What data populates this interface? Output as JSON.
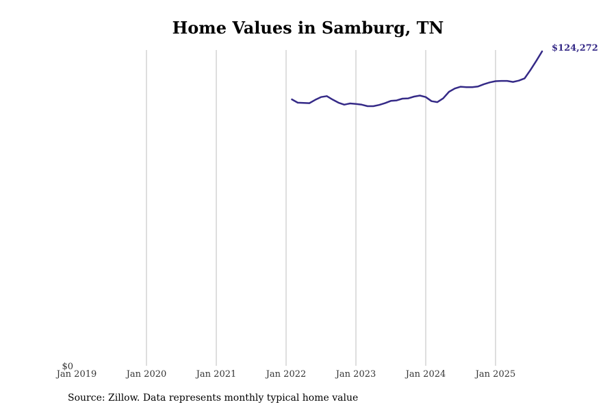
{
  "chart_data": {
    "type": "line",
    "title": "Home Values in Samburg, TN",
    "source": "Source: Zillow. Data represents monthly typical home value",
    "xlabel": "",
    "ylabel": "",
    "x_ticks": [
      {
        "date": "2019-01",
        "label": "Jan 2019"
      },
      {
        "date": "2020-01",
        "label": "Jan 2020"
      },
      {
        "date": "2021-01",
        "label": "Jan 2021"
      },
      {
        "date": "2022-01",
        "label": "Jan 2022"
      },
      {
        "date": "2023-01",
        "label": "Jan 2023"
      },
      {
        "date": "2024-01",
        "label": "Jan 2024"
      },
      {
        "date": "2025-01",
        "label": "Jan 2025"
      }
    ],
    "y_ticks": [
      {
        "value": 0,
        "label": "$0"
      }
    ],
    "xlim": [
      "2019-01",
      "2025-09"
    ],
    "ylim": [
      0,
      124272
    ],
    "grid": "vertical",
    "line_color": "#352a87",
    "end_label": "$124,272",
    "series": [
      {
        "x": [
          "2022-02",
          "2022-03",
          "2022-04",
          "2022-05",
          "2022-06",
          "2022-07",
          "2022-08",
          "2022-09",
          "2022-10",
          "2022-11",
          "2022-12",
          "2023-01",
          "2023-02",
          "2023-03",
          "2023-04",
          "2023-05",
          "2023-06",
          "2023-07",
          "2023-08",
          "2023-09",
          "2023-10",
          "2023-11",
          "2023-12",
          "2024-01",
          "2024-02",
          "2024-03",
          "2024-04",
          "2024-05",
          "2024-06",
          "2024-07",
          "2024-08",
          "2024-09",
          "2024-10",
          "2024-11",
          "2024-12",
          "2025-01",
          "2025-02",
          "2025-03",
          "2025-04",
          "2025-05",
          "2025-06",
          "2025-07",
          "2025-08",
          "2025-09"
        ],
        "y": [
          105300,
          104000,
          103900,
          103800,
          105100,
          106200,
          106600,
          105200,
          104000,
          103200,
          103700,
          103500,
          103200,
          102600,
          102600,
          103100,
          103800,
          104700,
          104900,
          105600,
          105700,
          106400,
          106800,
          106200,
          104600,
          104200,
          105700,
          108300,
          109600,
          110300,
          110100,
          110100,
          110400,
          111300,
          112000,
          112500,
          112600,
          112600,
          112200,
          112700,
          113600,
          116900,
          120500,
          124272
        ]
      }
    ]
  }
}
